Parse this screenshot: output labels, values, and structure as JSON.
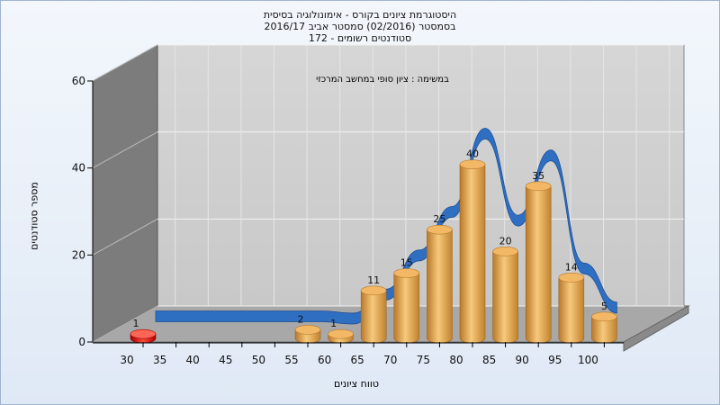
{
  "chart_data": {
    "type": "bar",
    "title_lines": [
      "היסטוגרמת ציונים בקורס - אימונולוגיה בסיסית",
      "בסמסטר  (02/2016)  סמסטר אביב 2016/17",
      "סטודנטים רשומים - 172"
    ],
    "annotation": "במשימה : ציון סופי במחשב המרכזי",
    "xlabel": "טווח ציונים",
    "ylabel": "מספר סטודנטים",
    "categories": [
      "30",
      "35",
      "40",
      "45",
      "50",
      "55",
      "60",
      "65",
      "70",
      "75",
      "80",
      "85",
      "90",
      "95",
      "100"
    ],
    "values": [
      1,
      0,
      0,
      0,
      0,
      2,
      1,
      11,
      15,
      25,
      40,
      20,
      35,
      14,
      5
    ],
    "highlight_category": "30",
    "ylim": [
      0,
      60
    ],
    "yticks": [
      0,
      20,
      40,
      60
    ],
    "distribution_curve": [
      3,
      3,
      3,
      3,
      3,
      3,
      2.5,
      8,
      17,
      27,
      45,
      25,
      40,
      14,
      5
    ],
    "grid": true,
    "colors": {
      "bar": "#e0a24a",
      "bar_highlight": "#dd1111",
      "curve": "#2f6fc2",
      "wall": "#7c7c7c",
      "plot_back": "#c8c8c8"
    }
  }
}
